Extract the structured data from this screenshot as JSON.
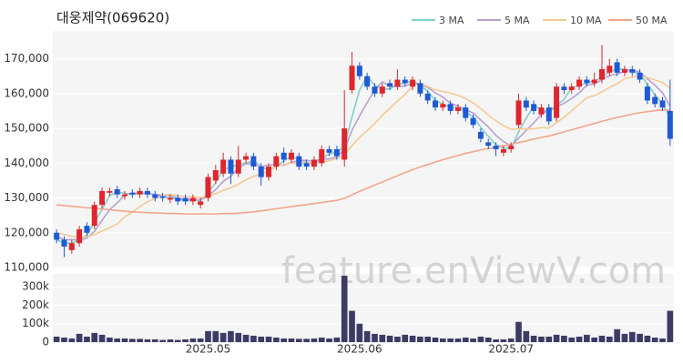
{
  "watermark": "feature.enViewV.com",
  "chart_data": [
    {
      "type": "candlestick",
      "title": "대웅제약(069620)",
      "up_color": "#e0262d",
      "down_color": "#1e5ad6",
      "grid": true,
      "legend": "top-right",
      "open": [
        120000,
        118000,
        115000,
        117000,
        122000,
        122000,
        128000,
        131500,
        132500,
        130500,
        131500,
        131000,
        132000,
        131000,
        130500,
        129500,
        130000,
        130000,
        129000,
        128000,
        130000,
        135000,
        137000,
        141000,
        137000,
        141000,
        142000,
        139000,
        136000,
        139000,
        143000,
        141000,
        142000,
        140000,
        139000,
        140000,
        144000,
        144000,
        141000,
        161000,
        168000,
        165000,
        162000,
        160000,
        163000,
        162000,
        164000,
        162000,
        163000,
        160000,
        158000,
        156000,
        157000,
        155000,
        156000,
        153000,
        149000,
        146000,
        145000,
        143000,
        144000,
        151000,
        158000,
        157000,
        154000,
        156000,
        153000,
        162000,
        161000,
        162000,
        164000,
        163000,
        164000,
        166000,
        169000,
        166000,
        167000,
        166000,
        162000,
        159000,
        158000,
        155000
      ],
      "high": [
        121000,
        119000,
        118000,
        122000,
        123000,
        129000,
        133000,
        133000,
        133500,
        132000,
        132500,
        133000,
        133000,
        132000,
        131500,
        131000,
        131000,
        131000,
        131000,
        130000,
        137000,
        139500,
        143000,
        142000,
        145000,
        143000,
        143000,
        140000,
        140000,
        143000,
        144500,
        144000,
        143000,
        141000,
        142000,
        145000,
        145000,
        145000,
        161000,
        172000,
        169000,
        166000,
        163000,
        163000,
        164000,
        167000,
        165000,
        165000,
        164000,
        161000,
        159000,
        158000,
        158000,
        157000,
        157000,
        154000,
        150000,
        147000,
        146000,
        145000,
        146000,
        160000,
        159000,
        158000,
        157000,
        157000,
        163000,
        163000,
        163000,
        165000,
        165000,
        166000,
        174000,
        170000,
        170000,
        168000,
        168000,
        167000,
        163000,
        160000,
        159000,
        164000
      ],
      "low": [
        117000,
        113000,
        114000,
        116000,
        119000,
        121000,
        127000,
        130500,
        130000,
        129500,
        130000,
        130000,
        130000,
        129000,
        129000,
        128500,
        128000,
        128000,
        128000,
        127000,
        129000,
        134000,
        136000,
        134000,
        136000,
        140000,
        138000,
        133500,
        135000,
        138000,
        140000,
        140000,
        138000,
        138000,
        138000,
        139000,
        142000,
        141000,
        139000,
        160000,
        164000,
        161000,
        159000,
        159000,
        161000,
        161000,
        162000,
        161000,
        159000,
        157000,
        155000,
        155000,
        154000,
        154000,
        152000,
        150000,
        146000,
        144000,
        142000,
        142000,
        143000,
        150000,
        155000,
        154000,
        153000,
        151000,
        152000,
        160000,
        160000,
        161000,
        162000,
        162000,
        163000,
        165000,
        165000,
        165000,
        165000,
        163000,
        157000,
        156000,
        155000,
        145000
      ],
      "close": [
        118000,
        116000,
        117000,
        121000,
        120000,
        128000,
        132000,
        132000,
        131000,
        131000,
        131000,
        132000,
        131000,
        130000,
        130000,
        130000,
        129000,
        129000,
        130000,
        129000,
        136000,
        138000,
        141000,
        137000,
        141000,
        142000,
        139000,
        136000,
        139000,
        142000,
        141000,
        143000,
        139000,
        139000,
        141000,
        144000,
        143000,
        142000,
        150000,
        168000,
        165000,
        162000,
        160000,
        162000,
        162000,
        164000,
        163000,
        164000,
        160000,
        158000,
        156000,
        157000,
        155000,
        156000,
        153000,
        151000,
        147000,
        145000,
        144000,
        144000,
        145000,
        158000,
        156000,
        155000,
        156000,
        152000,
        162000,
        161000,
        162000,
        164000,
        163000,
        164000,
        167000,
        168000,
        166000,
        167000,
        166000,
        164000,
        158000,
        157000,
        156000,
        147000
      ],
      "series": [
        {
          "name": "3 MA",
          "color": "#7fd0cc",
          "values": [
            118000,
            117000,
            117000,
            118000,
            119300,
            123000,
            126700,
            130700,
            131700,
            131300,
            131000,
            131300,
            131300,
            131000,
            130300,
            130000,
            129700,
            129300,
            129300,
            129300,
            131700,
            134300,
            138300,
            138700,
            139700,
            140000,
            140700,
            139000,
            138000,
            139000,
            140700,
            142000,
            141000,
            140300,
            139700,
            141300,
            142700,
            143000,
            145000,
            153300,
            161000,
            165000,
            162300,
            161300,
            161300,
            162700,
            163000,
            163700,
            162300,
            160700,
            158000,
            157000,
            156000,
            156000,
            154700,
            153300,
            150300,
            147700,
            145300,
            144300,
            144300,
            149000,
            153000,
            156300,
            155700,
            154300,
            156700,
            158300,
            161700,
            162300,
            163000,
            163700,
            164700,
            166300,
            167000,
            167000,
            166300,
            165700,
            162700,
            159700,
            157000,
            153300
          ]
        },
        {
          "name": "5 MA",
          "color": "#b6a2d2",
          "values": [
            119000,
            118000,
            118000,
            118000,
            118400,
            120400,
            123600,
            126600,
            128600,
            130800,
            131400,
            131400,
            131200,
            131000,
            130800,
            130600,
            130000,
            129600,
            129600,
            129400,
            130600,
            132400,
            134800,
            136200,
            138600,
            139800,
            139800,
            139000,
            139400,
            139600,
            139400,
            140200,
            140800,
            140800,
            140600,
            141200,
            141200,
            141800,
            144000,
            149400,
            153600,
            157400,
            161000,
            163400,
            162200,
            162000,
            162200,
            163000,
            162600,
            161800,
            160200,
            159000,
            157200,
            156400,
            155400,
            154400,
            152400,
            150400,
            148000,
            146200,
            145000,
            147200,
            149400,
            151600,
            154000,
            155400,
            156200,
            157200,
            158600,
            160200,
            162400,
            162800,
            164000,
            165200,
            165600,
            166400,
            166800,
            166200,
            164200,
            162400,
            160200,
            156400
          ]
        },
        {
          "name": "10 MA",
          "color": "#f4ca94",
          "values": [
            120000,
            119500,
            119000,
            118800,
            118800,
            119500,
            120500,
            121500,
            122500,
            124600,
            125900,
            127500,
            128900,
            129800,
            130800,
            131000,
            130700,
            130400,
            130300,
            130100,
            130600,
            131200,
            132200,
            132900,
            134000,
            135200,
            136200,
            136900,
            137800,
            139100,
            139600,
            140100,
            139900,
            140100,
            140100,
            140300,
            140700,
            141300,
            142400,
            145000,
            147400,
            149300,
            151400,
            153700,
            155800,
            157800,
            159800,
            162000,
            163000,
            162000,
            161100,
            160600,
            160100,
            159500,
            158600,
            157300,
            155700,
            153800,
            152200,
            150800,
            149700,
            149800,
            149900,
            149900,
            150200,
            150100,
            151600,
            153200,
            155000,
            157000,
            158800,
            159400,
            160500,
            161800,
            162800,
            164300,
            164700,
            165000,
            164600,
            163900,
            163200,
            161600
          ]
        },
        {
          "name": "50 MA",
          "color": "#f4a58c",
          "values": [
            128000,
            127800,
            127600,
            127400,
            127200,
            127000,
            126800,
            126600,
            126400,
            126200,
            126000,
            125900,
            125800,
            125700,
            125600,
            125500,
            125500,
            125400,
            125400,
            125400,
            125400,
            125400,
            125500,
            125500,
            125600,
            125800,
            126000,
            126300,
            126600,
            126900,
            127200,
            127500,
            127800,
            128100,
            128400,
            128700,
            129000,
            129300,
            129900,
            130900,
            131900,
            132800,
            133700,
            134600,
            135500,
            136400,
            137300,
            138100,
            138900,
            139600,
            140300,
            141000,
            141600,
            142200,
            142800,
            143300,
            143800,
            144200,
            144600,
            145000,
            145400,
            145900,
            146400,
            146900,
            147400,
            147800,
            148400,
            149000,
            149600,
            150200,
            150800,
            151400,
            152000,
            152600,
            153100,
            153600,
            154100,
            154500,
            154800,
            155100,
            155300,
            155200
          ]
        }
      ],
      "ylim": [
        110000,
        178000
      ],
      "yticks": [
        {
          "value": 110000,
          "label": "110,000"
        },
        {
          "value": 120000,
          "label": "120,000"
        },
        {
          "value": 130000,
          "label": "130,000"
        },
        {
          "value": 140000,
          "label": "140,000"
        },
        {
          "value": 150000,
          "label": "150,000"
        },
        {
          "value": 160000,
          "label": "160,000"
        },
        {
          "value": 170000,
          "label": "170,000"
        }
      ]
    },
    {
      "type": "bar",
      "color": "#3d3b66",
      "grid": true,
      "categories": [
        null,
        null,
        null,
        null,
        null,
        null,
        null,
        null,
        null,
        null,
        null,
        null,
        null,
        null,
        null,
        null,
        null,
        null,
        null,
        null,
        "2025.05",
        null,
        null,
        null,
        null,
        null,
        null,
        null,
        null,
        null,
        null,
        null,
        null,
        null,
        null,
        null,
        null,
        null,
        null,
        null,
        "2025.06",
        null,
        null,
        null,
        null,
        null,
        null,
        null,
        null,
        null,
        null,
        null,
        null,
        null,
        null,
        null,
        null,
        null,
        null,
        null,
        "2025.07",
        null,
        null,
        null,
        null,
        null,
        null,
        null,
        null,
        null,
        null,
        null,
        null,
        null,
        null,
        null,
        null,
        null,
        null,
        null,
        null,
        null
      ],
      "values": [
        30000,
        25000,
        20000,
        45000,
        30000,
        50000,
        40000,
        25000,
        20000,
        20000,
        18000,
        18000,
        15000,
        15000,
        12000,
        15000,
        12000,
        15000,
        20000,
        20000,
        60000,
        60000,
        50000,
        60000,
        50000,
        40000,
        35000,
        30000,
        30000,
        25000,
        20000,
        20000,
        18000,
        18000,
        20000,
        25000,
        20000,
        25000,
        360000,
        170000,
        100000,
        60000,
        45000,
        40000,
        35000,
        30000,
        40000,
        35000,
        30000,
        30000,
        25000,
        20000,
        20000,
        20000,
        25000,
        20000,
        30000,
        25000,
        15000,
        15000,
        20000,
        110000,
        60000,
        35000,
        30000,
        30000,
        40000,
        35000,
        25000,
        30000,
        40000,
        25000,
        35000,
        30000,
        70000,
        45000,
        55000,
        45000,
        35000,
        25000,
        20000,
        170000
      ],
      "ylim": [
        0,
        370000
      ],
      "yticks": [
        0,
        {
          "value": 100000,
          "label": "100k"
        },
        {
          "value": 200000,
          "label": "200k"
        },
        {
          "value": 300000,
          "label": "300k"
        }
      ]
    }
  ]
}
